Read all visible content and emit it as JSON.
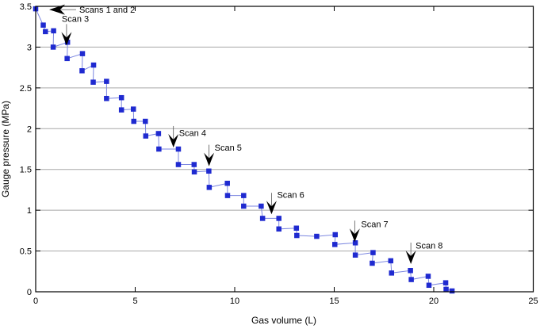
{
  "figure": {
    "background": "#ffffff",
    "marker_color": "#1f2ad0",
    "line_color": "#7b86e0",
    "grid_color": "#a8a8a8",
    "axis_color": "#000000"
  },
  "chart_data": {
    "type": "scatter",
    "title": "",
    "xlabel": "Gas volume (L)",
    "ylabel": "Gauge pressure (MPa)",
    "xlim": [
      0,
      25
    ],
    "ylim": [
      0,
      3.5
    ],
    "xticks": [
      0,
      5,
      10,
      15,
      20,
      25
    ],
    "xtick_labels": [
      "0",
      "5",
      "10",
      "15",
      "20",
      "25"
    ],
    "yticks": [
      0,
      0.5,
      1,
      1.5,
      2,
      2.5,
      3,
      3.5
    ],
    "ytick_labels": [
      "0",
      "0.5",
      "1",
      "1.5",
      "2",
      "2.5",
      "3",
      "3.5"
    ],
    "grid": "horizontal",
    "legend": "none",
    "marker": {
      "shape": "square",
      "size": 6.5
    },
    "points": [
      [
        0.0,
        3.47
      ],
      [
        0.38,
        3.27
      ],
      [
        0.49,
        3.19
      ],
      [
        0.9,
        3.2
      ],
      [
        0.88,
        3.0
      ],
      [
        1.6,
        3.06
      ],
      [
        1.58,
        2.86
      ],
      [
        2.35,
        2.92
      ],
      [
        2.33,
        2.71
      ],
      [
        2.91,
        2.78
      ],
      [
        2.89,
        2.57
      ],
      [
        3.56,
        2.58
      ],
      [
        3.56,
        2.37
      ],
      [
        4.31,
        2.38
      ],
      [
        4.31,
        2.23
      ],
      [
        4.91,
        2.24
      ],
      [
        4.93,
        2.09
      ],
      [
        5.51,
        2.09
      ],
      [
        5.53,
        1.91
      ],
      [
        6.17,
        1.94
      ],
      [
        6.19,
        1.75
      ],
      [
        7.17,
        1.75
      ],
      [
        7.17,
        1.56
      ],
      [
        7.96,
        1.56
      ],
      [
        7.97,
        1.47
      ],
      [
        8.7,
        1.48
      ],
      [
        8.72,
        1.28
      ],
      [
        9.63,
        1.33
      ],
      [
        9.64,
        1.18
      ],
      [
        10.45,
        1.18
      ],
      [
        10.45,
        1.05
      ],
      [
        11.33,
        1.05
      ],
      [
        11.4,
        0.9
      ],
      [
        12.22,
        0.9
      ],
      [
        12.22,
        0.77
      ],
      [
        13.1,
        0.78
      ],
      [
        13.12,
        0.69
      ],
      [
        14.12,
        0.68
      ],
      [
        15.05,
        0.7
      ],
      [
        15.03,
        0.58
      ],
      [
        16.06,
        0.6
      ],
      [
        16.06,
        0.45
      ],
      [
        16.95,
        0.48
      ],
      [
        16.91,
        0.35
      ],
      [
        17.84,
        0.38
      ],
      [
        17.88,
        0.23
      ],
      [
        18.83,
        0.26
      ],
      [
        18.87,
        0.15
      ],
      [
        19.72,
        0.19
      ],
      [
        19.76,
        0.08
      ],
      [
        20.6,
        0.11
      ],
      [
        20.62,
        0.03
      ],
      [
        20.92,
        0.01
      ]
    ],
    "annotations": [
      {
        "label": "Scans 1 and 2",
        "dir": "left",
        "tip": [
          0.68,
          3.46
        ],
        "label_pos": [
          2.19,
          3.455
        ]
      },
      {
        "label": "Scan 3",
        "dir": "down",
        "tip": [
          1.55,
          3.02
        ],
        "label_pos": [
          1.31,
          3.35
        ]
      },
      {
        "label": "Scan 4",
        "dir": "down",
        "tip": [
          6.92,
          1.77
        ],
        "label_pos": [
          7.2,
          1.95
        ]
      },
      {
        "label": "Scan 5",
        "dir": "down",
        "tip": [
          8.71,
          1.54
        ],
        "label_pos": [
          8.99,
          1.77
        ]
      },
      {
        "label": "Scan 6",
        "dir": "down",
        "tip": [
          11.85,
          0.95
        ],
        "label_pos": [
          12.13,
          1.19
        ]
      },
      {
        "label": "Scan 7",
        "dir": "down",
        "tip": [
          16.03,
          0.61
        ],
        "label_pos": [
          16.35,
          0.83
        ]
      },
      {
        "label": "Scan 8",
        "dir": "down",
        "tip": [
          18.85,
          0.34
        ],
        "label_pos": [
          19.09,
          0.57
        ]
      }
    ]
  }
}
